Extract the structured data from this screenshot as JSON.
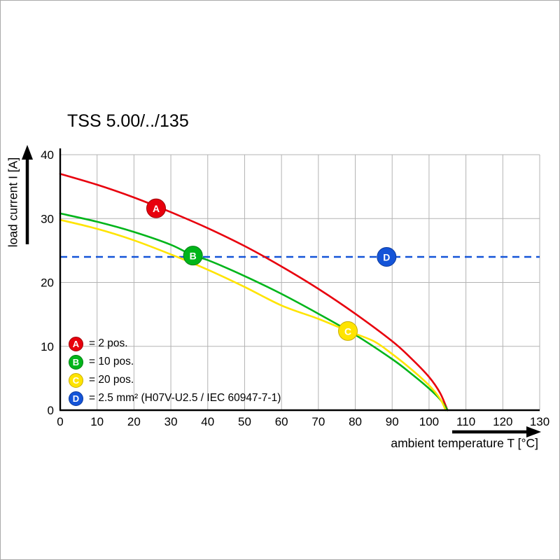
{
  "chart_data": {
    "type": "line",
    "title": "TSS 5.00/../135",
    "xlabel": "ambient temperature T [°C]",
    "ylabel": "load current I [A]",
    "xlim": [
      0,
      130
    ],
    "ylim": [
      0,
      40
    ],
    "xticks": [
      0,
      10,
      20,
      30,
      40,
      50,
      60,
      70,
      80,
      90,
      100,
      110,
      120,
      130
    ],
    "yticks": [
      0,
      10,
      20,
      30,
      40
    ],
    "grid": true,
    "grid_color": "#b3b3b3",
    "axis_color": "#000000",
    "series": [
      {
        "id": "A",
        "name": "2 pos.",
        "color": "#e8000d",
        "stroke": "#9e0009",
        "points": [
          [
            0,
            37
          ],
          [
            10,
            35.3
          ],
          [
            20,
            33.3
          ],
          [
            30,
            31
          ],
          [
            40,
            28.5
          ],
          [
            50,
            25.7
          ],
          [
            60,
            22.5
          ],
          [
            70,
            19
          ],
          [
            80,
            15.1
          ],
          [
            90,
            10.8
          ],
          [
            95,
            8.2
          ],
          [
            100,
            5.2
          ],
          [
            103,
            2.7
          ],
          [
            105,
            0
          ]
        ]
      },
      {
        "id": "B",
        "name": "10 pos.",
        "color": "#00b51a",
        "stroke": "#008012",
        "points": [
          [
            0,
            30.8
          ],
          [
            10,
            29.5
          ],
          [
            20,
            27.9
          ],
          [
            30,
            25.9
          ],
          [
            36,
            24.2
          ],
          [
            40,
            23.5
          ],
          [
            50,
            21
          ],
          [
            60,
            18.2
          ],
          [
            70,
            15.1
          ],
          [
            80,
            11.8
          ],
          [
            90,
            8
          ],
          [
            95,
            5.8
          ],
          [
            100,
            3.4
          ],
          [
            103,
            1.7
          ],
          [
            105,
            0
          ]
        ]
      },
      {
        "id": "C",
        "name": "20 pos.",
        "color": "#ffe400",
        "stroke": "#c9ae00",
        "points": [
          [
            0,
            29.8
          ],
          [
            10,
            28.4
          ],
          [
            20,
            26.6
          ],
          [
            30,
            24.4
          ],
          [
            40,
            22
          ],
          [
            50,
            19.3
          ],
          [
            60,
            16.4
          ],
          [
            70,
            14.3
          ],
          [
            78,
            12.4
          ],
          [
            85,
            10.8
          ],
          [
            90,
            8.8
          ],
          [
            95,
            6.5
          ],
          [
            100,
            3.9
          ],
          [
            103,
            1.8
          ],
          [
            104.5,
            0
          ]
        ]
      }
    ],
    "dashed_line": {
      "id": "D",
      "y": 24,
      "color": "#1454d8",
      "label": "2.5 mm² (H07V-U2.5 / IEC 60947-7-1)"
    },
    "markers": [
      {
        "id": "A",
        "label": "A",
        "x": 26,
        "y": 31.6,
        "fill": "#e8000d",
        "stroke": "#9e0009",
        "text": "#ffffff"
      },
      {
        "id": "B",
        "label": "B",
        "x": 36,
        "y": 24.2,
        "fill": "#00b51a",
        "stroke": "#008012",
        "text": "#ffffff"
      },
      {
        "id": "C",
        "label": "C",
        "x": 78,
        "y": 12.4,
        "fill": "#ffe400",
        "stroke": "#c9ae00",
        "text": "#ffffff"
      },
      {
        "id": "D",
        "label": "D",
        "x": 88.5,
        "y": 24,
        "fill": "#1454d8",
        "stroke": "#0c3a9e",
        "text": "#ffffff"
      }
    ],
    "legend": {
      "position": "inside-bottom-left",
      "items": [
        {
          "badge": "A",
          "color": "#e8000d",
          "stroke": "#9e0009",
          "text_color": "#ffffff",
          "label": "= 2 pos."
        },
        {
          "badge": "B",
          "color": "#00b51a",
          "stroke": "#008012",
          "text_color": "#ffffff",
          "label": "= 10 pos."
        },
        {
          "badge": "C",
          "color": "#ffe400",
          "stroke": "#c9ae00",
          "text_color": "#ffffff",
          "label": "= 20 pos."
        },
        {
          "badge": "D",
          "color": "#1454d8",
          "stroke": "#0c3a9e",
          "text_color": "#ffffff",
          "label": "= 2.5 mm² (H07V-U2.5 / IEC 60947-7-1)"
        }
      ]
    }
  }
}
